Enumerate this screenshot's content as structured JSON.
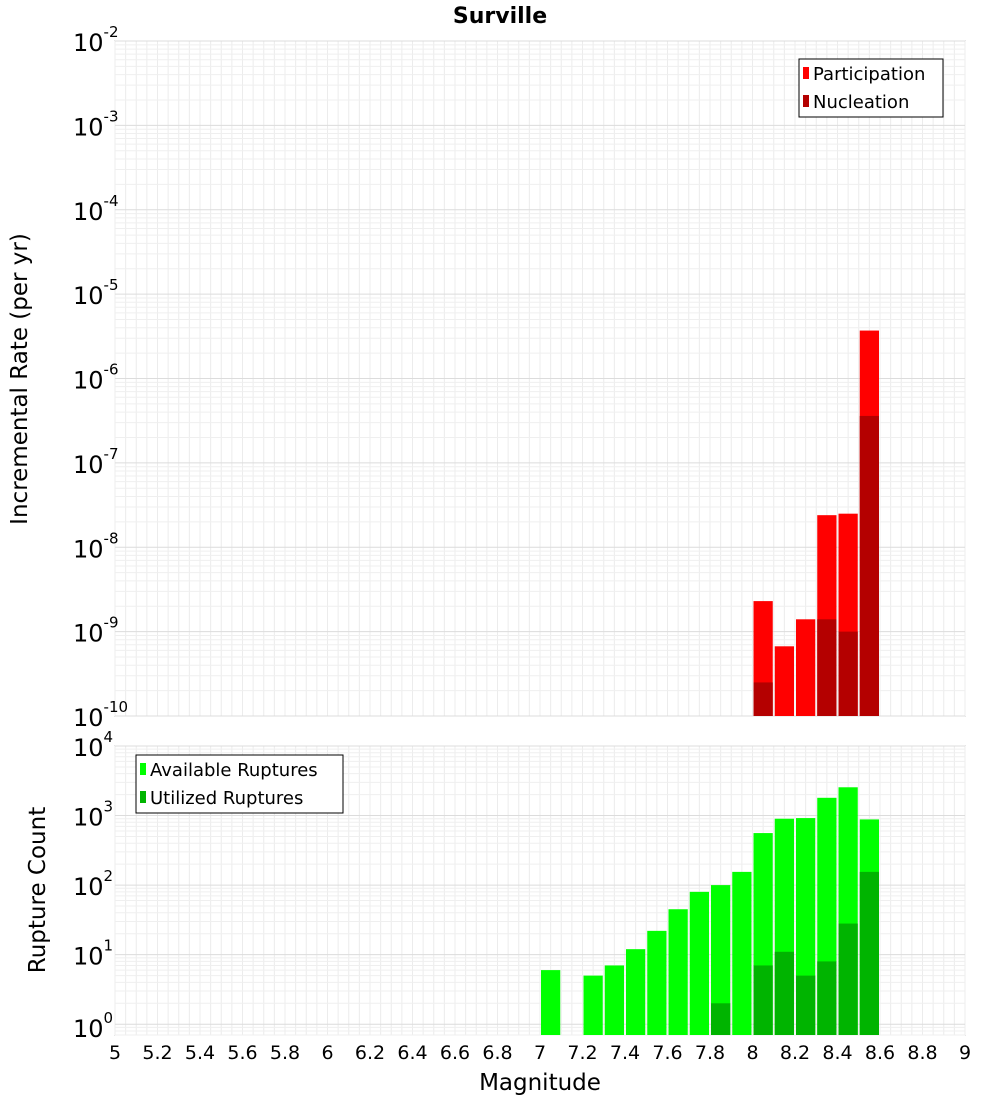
{
  "chart_data": [
    {
      "type": "bar",
      "title": "Surville",
      "xlabel": "Magnitude",
      "ylabel": "Incremental Rate (per yr)",
      "xlim": [
        5,
        9
      ],
      "ylim": [
        1e-10,
        0.01
      ],
      "y_scale": "log",
      "bin_width": 0.1,
      "legend": "top-right",
      "grid": true,
      "x_ticks": [
        "5",
        "5.2",
        "5.4",
        "5.6",
        "5.8",
        "6",
        "6.2",
        "6.4",
        "6.6",
        "6.8",
        "7",
        "7.2",
        "7.4",
        "7.6",
        "7.8",
        "8",
        "8.2",
        "8.4",
        "8.6",
        "8.8",
        "9"
      ],
      "y_ticks": [
        {
          "base": "10",
          "exp": "-2"
        },
        {
          "base": "10",
          "exp": "-3"
        },
        {
          "base": "10",
          "exp": "-4"
        },
        {
          "base": "10",
          "exp": "-5"
        },
        {
          "base": "10",
          "exp": "-6"
        },
        {
          "base": "10",
          "exp": "-7"
        },
        {
          "base": "10",
          "exp": "-8"
        },
        {
          "base": "10",
          "exp": "-9"
        },
        {
          "base": "10",
          "exp": "-10"
        }
      ],
      "series": [
        {
          "name": "Participation",
          "color": "#ff0000",
          "x": [
            8.05,
            8.15,
            8.25,
            8.35,
            8.45,
            8.55
          ],
          "values": [
            2.3e-09,
            6.7e-10,
            1.4e-09,
            2.4e-08,
            2.5e-08,
            3.7e-06
          ]
        },
        {
          "name": "Nucleation",
          "color": "#b40000",
          "x": [
            8.05,
            8.15,
            8.25,
            8.35,
            8.45,
            8.55
          ],
          "values": [
            2.5e-10,
            1e-10,
            1e-10,
            1.4e-09,
            1e-09,
            3.6e-07
          ]
        }
      ]
    },
    {
      "type": "bar",
      "xlabel": "Magnitude",
      "ylabel": "Rupture Count",
      "xlim": [
        5,
        9
      ],
      "ylim": [
        0.7,
        10000
      ],
      "y_scale": "log",
      "bin_width": 0.1,
      "legend": "top-left",
      "grid": true,
      "y_ticks": [
        {
          "base": "10",
          "exp": "4"
        },
        {
          "base": "10",
          "exp": "3"
        },
        {
          "base": "10",
          "exp": "2"
        },
        {
          "base": "10",
          "exp": "1"
        },
        {
          "base": "10",
          "exp": "0"
        }
      ],
      "series": [
        {
          "name": "Available Ruptures",
          "color": "#00ff00",
          "x": [
            7.05,
            7.25,
            7.35,
            7.45,
            7.55,
            7.65,
            7.75,
            7.85,
            7.95,
            8.05,
            8.15,
            8.25,
            8.35,
            8.45,
            8.55
          ],
          "values": [
            6,
            5,
            7,
            12,
            22,
            45,
            80,
            100,
            155,
            560,
            900,
            920,
            1800,
            2550,
            880
          ]
        },
        {
          "name": "Utilized Ruptures",
          "color": "#00b400",
          "x": [
            7.85,
            8.05,
            8.15,
            8.25,
            8.35,
            8.45,
            8.55
          ],
          "values": [
            2,
            7,
            11,
            5,
            8,
            28,
            155
          ]
        }
      ]
    }
  ]
}
